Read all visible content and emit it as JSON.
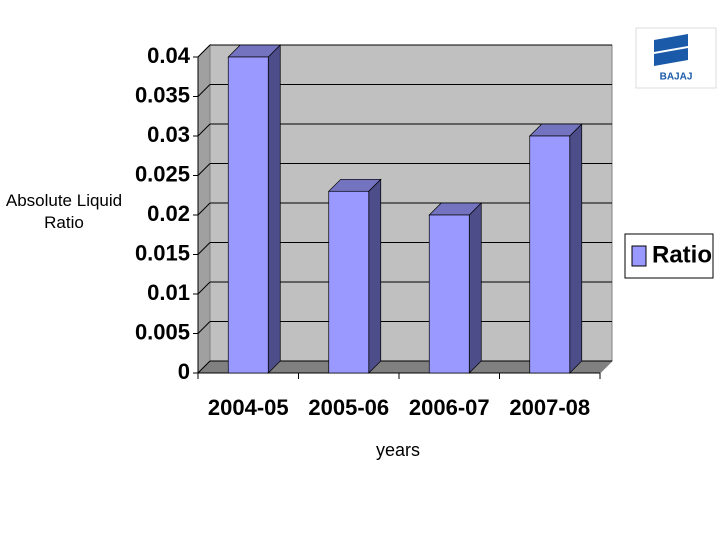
{
  "chart_data": {
    "type": "bar3d",
    "categories": [
      "2004-05",
      "2005-06",
      "2006-07",
      "2007-08"
    ],
    "series": [
      {
        "name": "Ratio",
        "color": "#9999ff",
        "values": [
          0.04,
          0.023,
          0.02,
          0.03
        ]
      }
    ],
    "ylim": [
      0,
      0.04
    ],
    "yticks": [
      0,
      0.005,
      0.01,
      0.015,
      0.02,
      0.025,
      0.03,
      0.035,
      0.04
    ],
    "grid": true,
    "xlabel": "years",
    "ylabel": "Absolute Liquid Ratio",
    "legend": "right",
    "logo_text": "BAJAJ"
  }
}
